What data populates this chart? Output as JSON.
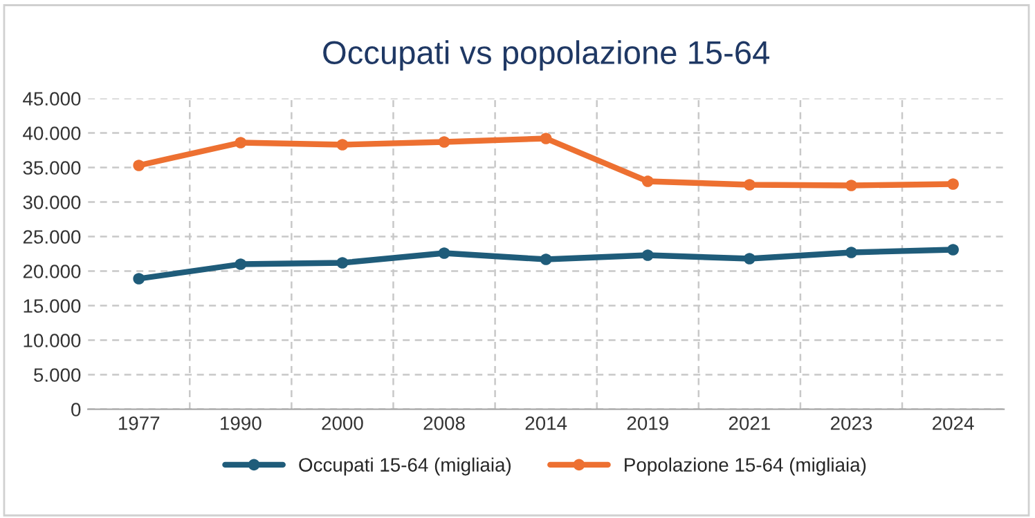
{
  "chart_data": {
    "type": "line",
    "title": "Occupati vs popolazione 15-64",
    "categories": [
      "1977",
      "1990",
      "2000",
      "2008",
      "2014",
      "2019",
      "2021",
      "2023",
      "2024"
    ],
    "series": [
      {
        "name": "Occupati 15-64 (migliaia)",
        "color": "#1f5c7a",
        "values": [
          18900,
          21000,
          21200,
          22600,
          21700,
          22300,
          21800,
          22700,
          23100
        ]
      },
      {
        "name": "Popolazione 15-64 (migliaia)",
        "color": "#ed7031",
        "values": [
          35300,
          38600,
          38300,
          38700,
          39200,
          33000,
          32500,
          32400,
          32600
        ]
      }
    ],
    "ylim": [
      0,
      45000
    ],
    "yticks": [
      0,
      {
        "value": 5000,
        "label": "5.000"
      },
      {
        "value": 10000,
        "label": "10.000"
      },
      {
        "value": 15000,
        "label": "15.000"
      },
      {
        "value": 20000,
        "label": "20.000"
      },
      {
        "value": 25000,
        "label": "25.000"
      },
      {
        "value": 30000,
        "label": "30.000"
      },
      {
        "value": 35000,
        "label": "35.000"
      },
      {
        "value": 40000,
        "label": "40.000"
      },
      {
        "value": 45000,
        "label": "45.000"
      }
    ],
    "grid": true,
    "legend": "bottom",
    "marker": "circle",
    "line_style": "solid"
  }
}
